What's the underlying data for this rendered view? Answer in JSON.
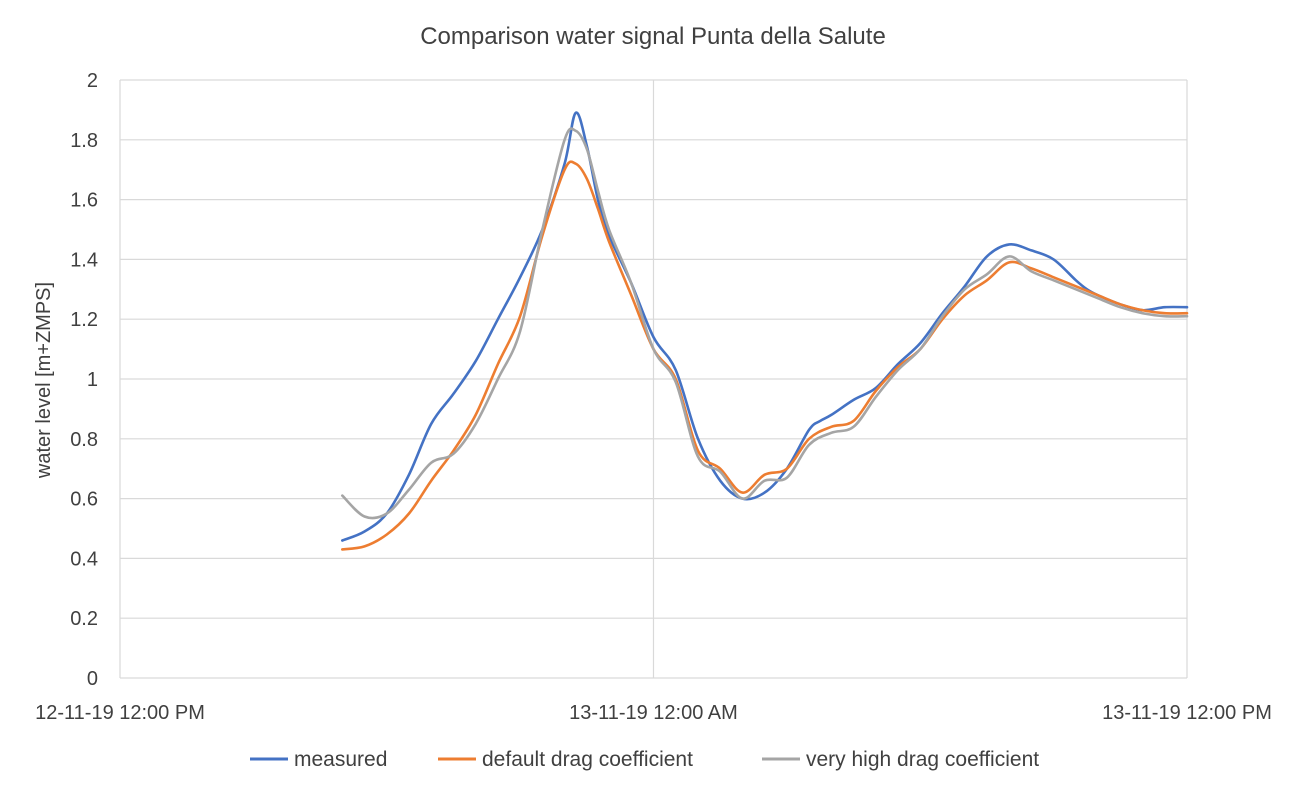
{
  "chart_data": {
    "type": "line",
    "title": "Comparison water signal Punta della Salute",
    "xlabel": "",
    "ylabel": "water level [m+ZMPS]",
    "x_unit": "hours since 12-11-19 12:00 PM",
    "xlim": [
      0,
      48
    ],
    "ylim": [
      0,
      2
    ],
    "y_ticks": [
      0,
      0.2,
      0.4,
      0.6,
      0.8,
      1,
      1.2,
      1.4,
      1.6,
      1.8,
      2
    ],
    "y_tick_labels": [
      "0",
      "0.2",
      "0.4",
      "0.6",
      "0.8",
      "1",
      "1.2",
      "1.4",
      "1.6",
      "1.8",
      "2"
    ],
    "x_ticks": [
      0,
      24,
      48
    ],
    "x_tick_labels": [
      "12-11-19 12:00 PM",
      "13-11-19 12:00 AM",
      "13-11-19 12:00 PM"
    ],
    "grid": true,
    "legend_position": "bottom",
    "series": [
      {
        "name": "measured",
        "color": "#4472C4",
        "x": [
          10,
          11,
          12,
          13,
          14,
          15,
          16,
          17,
          18,
          19,
          20,
          20.5,
          21,
          21.5,
          22,
          23,
          24,
          25,
          26,
          27,
          28,
          29,
          30,
          31,
          31.5,
          32,
          33,
          34,
          35,
          36,
          37,
          38,
          39,
          40,
          41,
          42,
          43,
          43.5,
          44,
          45,
          46,
          47,
          48
        ],
        "y": [
          0.46,
          0.49,
          0.55,
          0.68,
          0.85,
          0.95,
          1.06,
          1.2,
          1.34,
          1.5,
          1.72,
          1.89,
          1.78,
          1.6,
          1.48,
          1.32,
          1.14,
          1.03,
          0.8,
          0.66,
          0.6,
          0.62,
          0.7,
          0.83,
          0.86,
          0.88,
          0.93,
          0.97,
          1.05,
          1.12,
          1.22,
          1.31,
          1.41,
          1.45,
          1.43,
          1.4,
          1.33,
          1.3,
          1.28,
          1.25,
          1.23,
          1.24,
          1.24
        ]
      },
      {
        "name": "default drag coefficient",
        "color": "#ED7D31",
        "x": [
          10,
          11,
          12,
          13,
          14,
          15,
          16,
          17,
          18,
          19,
          20,
          20.5,
          21,
          21.5,
          22,
          23,
          24,
          25,
          26,
          27,
          28,
          29,
          30,
          31,
          32,
          33,
          34,
          35,
          36,
          37,
          38,
          39,
          40,
          41,
          42,
          43,
          44,
          45,
          46,
          47,
          48
        ],
        "y": [
          0.43,
          0.44,
          0.48,
          0.55,
          0.66,
          0.76,
          0.88,
          1.05,
          1.21,
          1.48,
          1.7,
          1.72,
          1.67,
          1.57,
          1.46,
          1.28,
          1.1,
          1.0,
          0.76,
          0.7,
          0.62,
          0.68,
          0.7,
          0.8,
          0.84,
          0.86,
          0.96,
          1.04,
          1.1,
          1.2,
          1.28,
          1.33,
          1.39,
          1.37,
          1.34,
          1.31,
          1.28,
          1.25,
          1.23,
          1.22,
          1.22
        ]
      },
      {
        "name": "very high drag coefficient",
        "color": "#A5A5A5",
        "x": [
          10,
          11,
          12,
          13,
          14,
          15,
          16,
          17,
          18,
          19,
          20,
          20.5,
          21,
          21.5,
          22,
          23,
          24,
          25,
          26,
          27,
          28,
          29,
          30,
          31,
          32,
          33,
          34,
          35,
          36,
          37,
          38,
          39,
          40,
          41,
          42,
          43,
          44,
          45,
          46,
          47,
          48
        ],
        "y": [
          0.61,
          0.54,
          0.55,
          0.63,
          0.72,
          0.75,
          0.85,
          1.0,
          1.16,
          1.5,
          1.8,
          1.83,
          1.77,
          1.63,
          1.5,
          1.32,
          1.1,
          0.99,
          0.74,
          0.69,
          0.6,
          0.66,
          0.67,
          0.78,
          0.82,
          0.84,
          0.94,
          1.03,
          1.1,
          1.21,
          1.3,
          1.35,
          1.41,
          1.36,
          1.33,
          1.3,
          1.27,
          1.24,
          1.22,
          1.21,
          1.21
        ]
      }
    ]
  }
}
